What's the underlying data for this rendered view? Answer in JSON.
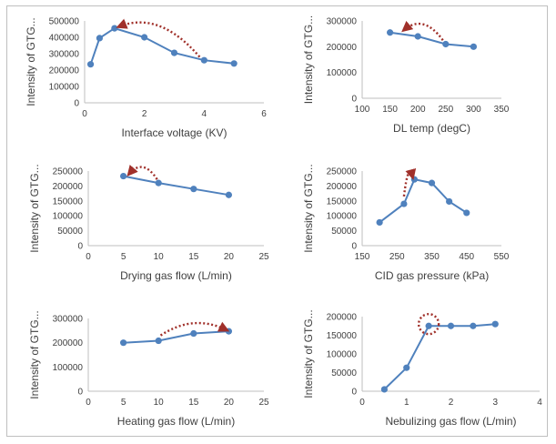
{
  "chart_data": [
    {
      "type": "scatter",
      "xlabel": "Interface voltage (KV)",
      "ylabel": "Intensity of GTG...",
      "xlim": [
        0,
        6
      ],
      "xticks": [
        0,
        2,
        4,
        6
      ],
      "ylim": [
        0,
        500000
      ],
      "yticks": [
        0,
        100000,
        200000,
        300000,
        400000,
        500000
      ],
      "series": [
        {
          "x": [
            0.2,
            0.5,
            1,
            2,
            3,
            4,
            5
          ],
          "y": [
            235000,
            395000,
            455000,
            400000,
            305000,
            260000,
            240000
          ]
        }
      ],
      "annotation": {
        "from": [
          3.85,
          280000
        ],
        "to": [
          1.15,
          465000
        ],
        "color": "#a0302a"
      },
      "line_color": "#4f81bd"
    },
    {
      "type": "scatter",
      "xlabel": "DL temp (degC)",
      "ylabel": "Intensity of GTG...",
      "xlim": [
        100,
        350
      ],
      "xticks": [
        100,
        150,
        200,
        250,
        300,
        350
      ],
      "ylim": [
        0,
        300000
      ],
      "yticks": [
        0,
        100000,
        200000,
        300000
      ],
      "series": [
        {
          "x": [
            150,
            200,
            250,
            300
          ],
          "y": [
            255000,
            240000,
            210000,
            200000
          ]
        }
      ],
      "annotation": {
        "from": [
          245,
          225000
        ],
        "to": [
          175,
          265000
        ],
        "color": "#a0302a"
      },
      "line_color": "#4f81bd"
    },
    {
      "type": "scatter",
      "xlabel": "Drying gas flow (L/min)",
      "ylabel": "Intensity of GTG...",
      "xlim": [
        0,
        25
      ],
      "xticks": [
        0,
        5,
        10,
        15,
        20,
        25
      ],
      "ylim": [
        0,
        250000
      ],
      "yticks": [
        0,
        50000,
        100000,
        150000,
        200000,
        250000
      ],
      "series": [
        {
          "x": [
            5,
            10,
            15,
            20
          ],
          "y": [
            233000,
            210000,
            190000,
            170000
          ]
        }
      ],
      "annotation": {
        "from": [
          9.8,
          222000
        ],
        "to": [
          5.8,
          240000
        ],
        "color": "#a0302a"
      },
      "line_color": "#4f81bd"
    },
    {
      "type": "scatter",
      "xlabel": "CID gas pressure (kPa)",
      "ylabel": "Intensity of GTG...",
      "xlim": [
        150,
        550
      ],
      "xticks": [
        150,
        250,
        350,
        450,
        550
      ],
      "ylim": [
        0,
        250000
      ],
      "yticks": [
        0,
        50000,
        100000,
        150000,
        200000,
        250000
      ],
      "series": [
        {
          "x": [
            200,
            270,
            300,
            350,
            400,
            450
          ],
          "y": [
            78000,
            140000,
            222000,
            210000,
            148000,
            110000
          ]
        }
      ],
      "annotation": {
        "from": [
          270,
          165000
        ],
        "to": [
          295,
          230000
        ],
        "color": "#a0302a"
      },
      "line_color": "#4f81bd"
    },
    {
      "type": "scatter",
      "xlabel": "Heating gas flow (L/min)",
      "ylabel": "Intensity of GTG...",
      "xlim": [
        0,
        25
      ],
      "xticks": [
        0,
        5,
        10,
        15,
        20,
        25
      ],
      "ylim": [
        0,
        300000
      ],
      "yticks": [
        0,
        100000,
        200000,
        300000
      ],
      "series": [
        {
          "x": [
            5,
            10,
            15,
            20
          ],
          "y": [
            200000,
            208000,
            238000,
            247000
          ]
        }
      ],
      "annotation": {
        "from": [
          10.3,
          230000
        ],
        "to": [
          19.7,
          252000
        ],
        "color": "#a0302a"
      },
      "line_color": "#4f81bd"
    },
    {
      "type": "scatter",
      "xlabel": "Nebulizing gas flow (L/min)",
      "ylabel": "Intensity of GTG...",
      "xlim": [
        0,
        4
      ],
      "xticks": [
        0,
        1,
        2,
        3,
        4
      ],
      "ylim": [
        0,
        200000
      ],
      "yticks": [
        0,
        50000,
        100000,
        150000,
        200000
      ],
      "series": [
        {
          "x": [
            0.5,
            1,
            1.5,
            2,
            2.5,
            3
          ],
          "y": [
            5000,
            63000,
            175000,
            175000,
            175000,
            180000
          ]
        }
      ],
      "annotation": {
        "circle": [
          1.5,
          180000
        ],
        "color": "#a0302a"
      },
      "line_color": "#4f81bd"
    }
  ]
}
